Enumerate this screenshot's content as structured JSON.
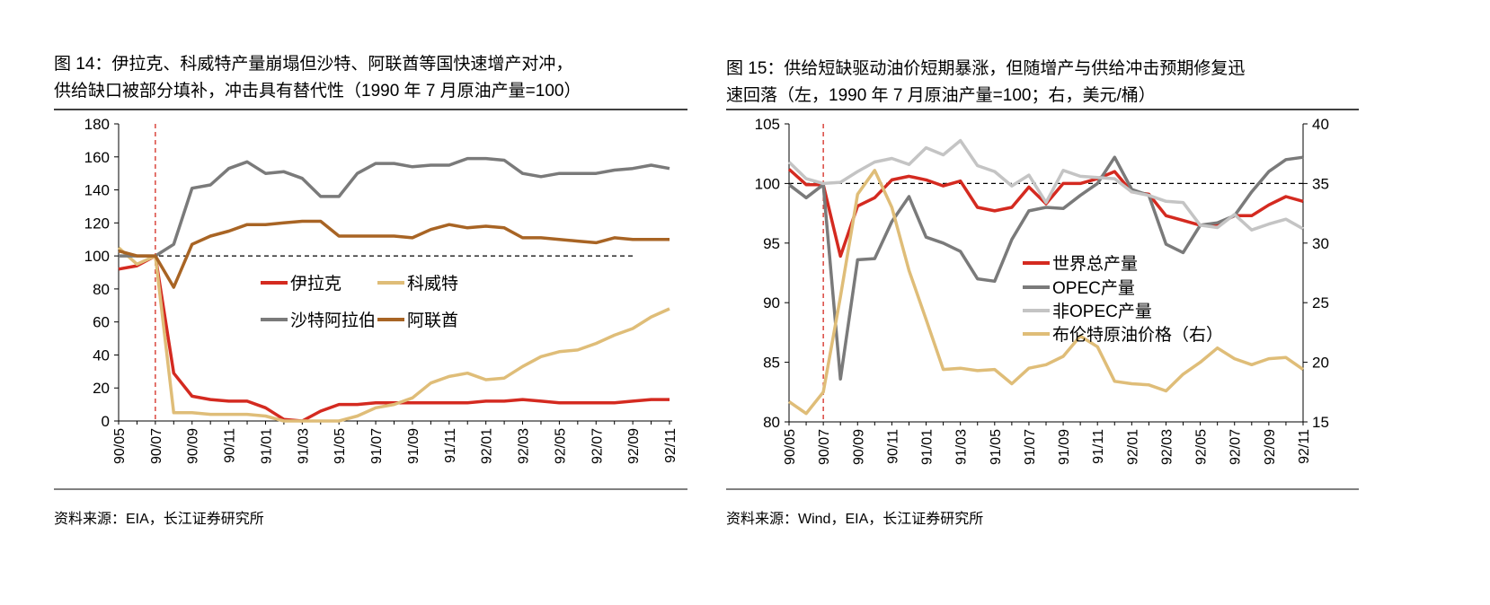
{
  "chart_data": [
    {
      "type": "line",
      "title_line1": "图 14：伊拉克、科威特产量崩塌但沙特、阿联酋等国快速增产对冲，",
      "title_line2": "供给缺口被部分填补，冲击具有替代性（1990 年 7 月原油产量=100）",
      "source": "资料来源：EIA，长江证券研究所",
      "x": [
        "90/05",
        "90/06",
        "90/07",
        "90/08",
        "90/09",
        "90/10",
        "90/11",
        "90/12",
        "91/01",
        "91/02",
        "91/03",
        "91/04",
        "91/05",
        "91/06",
        "91/07",
        "91/08",
        "91/09",
        "91/10",
        "91/11",
        "91/12",
        "92/01",
        "92/02",
        "92/03",
        "92/04",
        "92/05",
        "92/06",
        "92/07",
        "92/08",
        "92/09",
        "92/10",
        "92/11"
      ],
      "x_tick_labels": [
        "90/05",
        "90/07",
        "90/09",
        "90/11",
        "91/01",
        "91/03",
        "91/05",
        "91/07",
        "91/09",
        "91/11",
        "92/01",
        "92/03",
        "92/05",
        "92/07",
        "92/09",
        "92/11"
      ],
      "ylim": [
        0,
        180
      ],
      "y_ticks": [
        0,
        20,
        40,
        60,
        80,
        100,
        120,
        140,
        160,
        180
      ],
      "reference_line": 100,
      "event_marker": "90/07",
      "legend_placement": "center",
      "series": [
        {
          "name": "伊拉克",
          "color": "#d42a20",
          "values": [
            92,
            94,
            100,
            29,
            15,
            13,
            12,
            12,
            8,
            1,
            0,
            6,
            10,
            10,
            11,
            11,
            11,
            11,
            11,
            11,
            12,
            12,
            13,
            12,
            11,
            11,
            11,
            11,
            12,
            13,
            13
          ]
        },
        {
          "name": "科威特",
          "color": "#dfbd78",
          "values": [
            105,
            95,
            100,
            5,
            5,
            4,
            4,
            4,
            3,
            0,
            0,
            0,
            0,
            3,
            8,
            10,
            14,
            23,
            27,
            29,
            25,
            26,
            33,
            39,
            42,
            43,
            47,
            52,
            56,
            63,
            68
          ]
        },
        {
          "name": "沙特阿拉伯",
          "color": "#7a7a7a",
          "values": [
            100,
            100,
            100,
            107,
            141,
            143,
            153,
            157,
            150,
            151,
            147,
            136,
            136,
            150,
            156,
            156,
            154,
            155,
            155,
            159,
            159,
            158,
            150,
            148,
            150,
            150,
            150,
            152,
            153,
            155,
            153
          ]
        },
        {
          "name": "阿联酋",
          "color": "#a86424",
          "values": [
            103,
            100,
            100,
            81,
            107,
            112,
            115,
            119,
            119,
            120,
            121,
            121,
            112,
            112,
            112,
            112,
            111,
            116,
            119,
            117,
            118,
            117,
            111,
            111,
            110,
            109,
            108,
            111,
            110,
            110,
            110
          ]
        }
      ]
    },
    {
      "type": "line",
      "title_line1": "图 15：供给短缺驱动油价短期暴涨，但随增产与供给冲击预期修复迅",
      "title_line2": "速回落（左，1990 年 7 月原油产量=100；右，美元/桶）",
      "source": "资料来源：Wind，EIA，长江证券研究所",
      "x": [
        "90/05",
        "90/06",
        "90/07",
        "90/08",
        "90/09",
        "90/10",
        "90/11",
        "90/12",
        "91/01",
        "91/02",
        "91/03",
        "91/04",
        "91/05",
        "91/06",
        "91/07",
        "91/08",
        "91/09",
        "91/10",
        "91/11",
        "91/12",
        "92/01",
        "92/02",
        "92/03",
        "92/04",
        "92/05",
        "92/06",
        "92/07",
        "92/08",
        "92/09",
        "92/10",
        "92/11"
      ],
      "x_tick_labels": [
        "90/05",
        "90/07",
        "90/09",
        "90/11",
        "91/01",
        "91/03",
        "91/05",
        "91/07",
        "91/09",
        "91/11",
        "92/01",
        "92/03",
        "92/05",
        "92/07",
        "92/09",
        "92/11"
      ],
      "ylim": [
        80,
        105
      ],
      "y_ticks": [
        80,
        85,
        90,
        95,
        100,
        105
      ],
      "y2lim": [
        15,
        40
      ],
      "y2_ticks": [
        15,
        20,
        25,
        30,
        35,
        40
      ],
      "reference_line": 100,
      "event_marker": "90/07",
      "legend_placement": "center-right",
      "series": [
        {
          "name": "世界总产量",
          "axis": "left",
          "color": "#d42a20",
          "values": [
            101.2,
            99.9,
            99.9,
            93.9,
            98.1,
            98.8,
            100.3,
            100.6,
            100.3,
            99.8,
            100.2,
            98,
            97.7,
            98,
            99.7,
            98.3,
            100,
            100,
            100.4,
            101,
            99.3,
            99.1,
            97.3,
            96.9,
            96.5,
            96.6,
            97.3,
            97.3,
            98.2,
            98.9,
            98.5
          ]
        },
        {
          "name": "OPEC产量",
          "axis": "left",
          "color": "#7a7a7a",
          "values": [
            99.9,
            98.8,
            99.9,
            83.6,
            93.6,
            93.7,
            96.8,
            98.9,
            95.5,
            95,
            94.3,
            92,
            91.8,
            95.3,
            97.7,
            98,
            97.9,
            99,
            100,
            102.2,
            99.5,
            99,
            94.9,
            94.2,
            96.5,
            96.7,
            97.3,
            99.3,
            101,
            102,
            102.2
          ]
        },
        {
          "name": "非OPEC产量",
          "axis": "left",
          "color": "#c4c4c4",
          "values": [
            101.8,
            100.4,
            100,
            100.1,
            101,
            101.8,
            102.1,
            101.6,
            103,
            102.4,
            103.6,
            101.5,
            101,
            99.8,
            100.7,
            98.4,
            101.1,
            100.6,
            100.5,
            100.4,
            99.3,
            99,
            98.5,
            98.4,
            96.5,
            96.3,
            97.4,
            96.1,
            96.6,
            97,
            96.2
          ]
        },
        {
          "name": "布伦特原油价格（右）",
          "axis": "right",
          "color": "#dfbd78",
          "values": [
            16.7,
            15.7,
            17.5,
            25.5,
            34.1,
            36.1,
            33,
            27.7,
            23.6,
            19.4,
            19.5,
            19.3,
            19.4,
            18.2,
            19.5,
            19.8,
            20.5,
            22.2,
            21.3,
            18.4,
            18.2,
            18.1,
            17.6,
            19,
            20,
            21.2,
            20.3,
            19.8,
            20.3,
            20.4,
            19.4
          ]
        }
      ]
    }
  ]
}
